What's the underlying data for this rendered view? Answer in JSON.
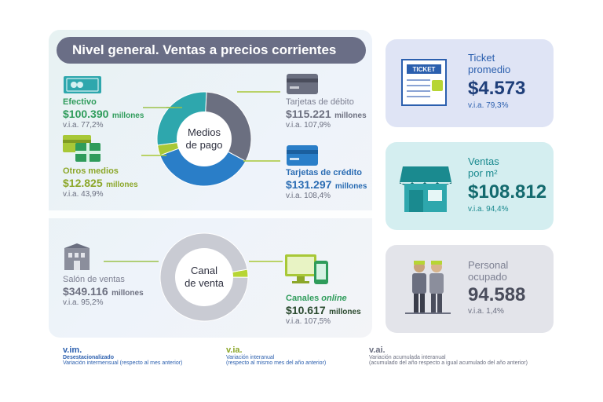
{
  "title": "Nivel general. Ventas a precios corrientes",
  "donut_top": {
    "center_line1": "Medios",
    "center_line2": "de pago"
  },
  "donut_bottom": {
    "center_line1": "Canal",
    "center_line2": "de venta"
  },
  "payment": {
    "efectivo": {
      "label": "Efectivo",
      "value": "$100.390",
      "unit": "millones",
      "via": "v.i.a. 77,2%"
    },
    "otros": {
      "label": "Otros medios",
      "value": "$12.825",
      "unit": "millones",
      "via": "v.i.a. 43,9%"
    },
    "debito": {
      "label": "Tarjetas de débito",
      "value": "$115.221",
      "unit": "millones",
      "via": "v.i.a. 107,9%"
    },
    "credito": {
      "label": "Tarjetas de crédito",
      "value": "$131.297",
      "unit": "millones",
      "via": "v.i.a. 108,4%"
    }
  },
  "channel": {
    "salon": {
      "label": "Salón de ventas",
      "value": "$349.116",
      "unit": "millones",
      "via": "v.i.a. 95,2%"
    },
    "online": {
      "label_pre": "Canales",
      "label_em": "online",
      "value": "$10.617",
      "unit": "millones",
      "via": "v.i.a. 107,5%"
    }
  },
  "cards": {
    "ticket": {
      "line1": "Ticket",
      "line2": "promedio",
      "value": "$4.573",
      "via": "v.i.a. 79,3%",
      "icon_text": "TICKET"
    },
    "ventas": {
      "line1": "Ventas",
      "line2": "por m²",
      "value": "$108.812",
      "via": "v.i.a. 94,4%"
    },
    "personal": {
      "line1": "Personal",
      "line2": "ocupado",
      "value": "94.588",
      "via": "v.i.a. 1,4%"
    }
  },
  "footer": {
    "vim": {
      "title": "v.im.",
      "sub1": "Desestacionalizado",
      "sub2": "Variación intermensual (respecto al mes anterior)"
    },
    "via": {
      "title": "v.ia.",
      "sub1": "Variación interanual",
      "sub2": "(respecto al mismo mes del año anterior)"
    },
    "vai": {
      "title": "v.ai.",
      "sub1": "Variación acumulada interanual",
      "sub2": "(acumulado del año respecto a igual acumulado del año anterior)"
    }
  },
  "colors": {
    "efectivo": "#2ea7ad",
    "otros": "#a8c837",
    "debito": "#6b6f80",
    "credito": "#2a7ec8",
    "salon": "#c9cbd3",
    "online": "#b7d534",
    "ticket_text": "#2b5fae",
    "ventas_text": "#1a8a8f",
    "personal_text": "#6b6f80"
  },
  "chart_data": [
    {
      "type": "pie",
      "categories": [
        "Efectivo",
        "Otros medios",
        "Tarjetas de débito",
        "Tarjetas de crédito"
      ],
      "values": [
        100390,
        12825,
        115221,
        131297
      ]
    },
    {
      "type": "pie",
      "categories": [
        "Salón de ventas",
        "Canales online"
      ],
      "values": [
        349116,
        10617
      ]
    }
  ]
}
